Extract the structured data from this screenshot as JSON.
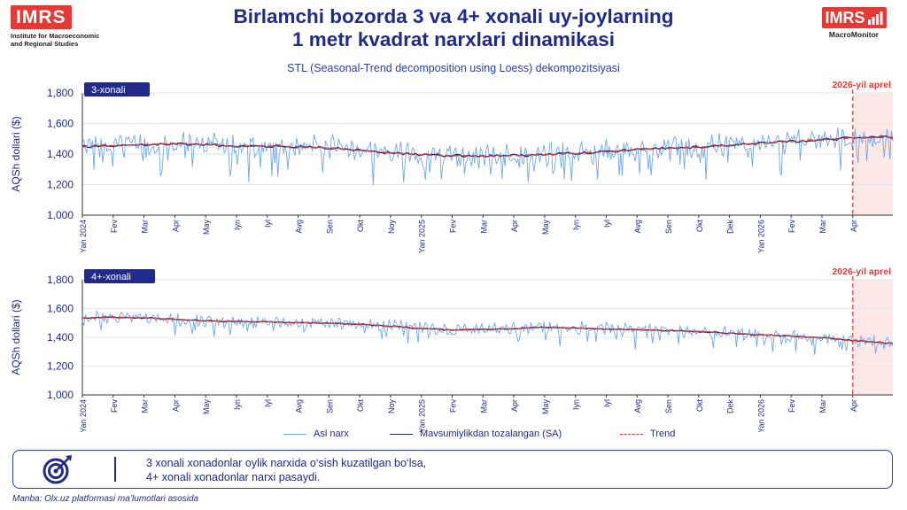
{
  "header": {
    "logo_left_text": "IMRS",
    "logo_left_sub_1": "Institute for Macroeconomic",
    "logo_left_sub_2": "and Regional Studies",
    "logo_right_text": "IMRS",
    "logo_right_sub": "MacroMonitor",
    "title_line1": "Birlamchi bozorda 3 va 4+ xonali uy-joylarning",
    "title_line2": "1 metr kvadrat narxlari dinamikasi",
    "subtitle": "STL (Seasonal-Trend decomposition using Loess) dekompozitsiyasi"
  },
  "colors": {
    "raw": "#6fa8ea",
    "sa": "#1f2a6a",
    "trend": "#e53935",
    "shade": "#fde8e8",
    "accent": "#1f2a8a"
  },
  "chart_data": [
    {
      "type": "line",
      "panel_label": "3-xonali",
      "ylabel": "AQSh dollari ($)",
      "ylim": [
        1000,
        1800
      ],
      "yticks": [
        1000,
        1200,
        1400,
        1600,
        1800
      ],
      "ytick_labels": [
        "1,000",
        "1,200",
        "1,400",
        "1,600",
        "1,800"
      ],
      "x_ticks": [
        "Yan 2024",
        "Fev",
        "Mar",
        "Apr",
        "May",
        "Iyn",
        "Iyl",
        "Avg",
        "Sen",
        "Okt",
        "Noy",
        "Yan 2025",
        "Fev",
        "Mar",
        "Apr",
        "May",
        "Iyn",
        "Iyl",
        "Avg",
        "Sen",
        "Okt",
        "Dek",
        "Yan 2026",
        "Fev",
        "Mar",
        "Apr"
      ],
      "annotation": "2026-yil aprel",
      "trend_knots": [
        [
          0,
          1448
        ],
        [
          1,
          1455
        ],
        [
          2,
          1462
        ],
        [
          3,
          1468
        ],
        [
          4,
          1462
        ],
        [
          5,
          1450
        ],
        [
          6,
          1452
        ],
        [
          7,
          1448
        ],
        [
          8,
          1440
        ],
        [
          9,
          1425
        ],
        [
          10,
          1408
        ],
        [
          11,
          1395
        ],
        [
          12,
          1390
        ],
        [
          13,
          1388
        ],
        [
          14,
          1390
        ],
        [
          15,
          1395
        ],
        [
          16,
          1405
        ],
        [
          17,
          1415
        ],
        [
          18,
          1428
        ],
        [
          19,
          1438
        ],
        [
          20,
          1445
        ],
        [
          21,
          1458
        ],
        [
          22,
          1470
        ],
        [
          23,
          1483
        ],
        [
          24,
          1495
        ],
        [
          25,
          1505
        ],
        [
          26.3,
          1510
        ]
      ],
      "raw_amplitude": 75,
      "raw_seed": 3
    },
    {
      "type": "line",
      "panel_label": "4+-xonali",
      "ylabel": "AQSh dollari ($)",
      "ylim": [
        1000,
        1800
      ],
      "yticks": [
        1000,
        1200,
        1400,
        1600,
        1800
      ],
      "ytick_labels": [
        "1,000",
        "1,200",
        "1,400",
        "1,600",
        "1,800"
      ],
      "x_ticks": [
        "Yan 2024",
        "Fev",
        "Mar",
        "Apr",
        "May",
        "Iyn",
        "Iyl",
        "Avg",
        "Sen",
        "Okt",
        "Noy",
        "Yan 2025",
        "Fev",
        "Mar",
        "Apr",
        "May",
        "Iyn",
        "Iyl",
        "Avg",
        "Sen",
        "Okt",
        "Dek",
        "Yan 2026",
        "Fev",
        "Mar",
        "Apr"
      ],
      "annotation": "2026-yil aprel",
      "trend_knots": [
        [
          0,
          1535
        ],
        [
          1,
          1540
        ],
        [
          2,
          1535
        ],
        [
          3,
          1525
        ],
        [
          4,
          1515
        ],
        [
          5,
          1510
        ],
        [
          6,
          1508
        ],
        [
          7,
          1502
        ],
        [
          8,
          1498
        ],
        [
          9,
          1490
        ],
        [
          10,
          1478
        ],
        [
          11,
          1462
        ],
        [
          12,
          1452
        ],
        [
          13,
          1455
        ],
        [
          14,
          1460
        ],
        [
          15,
          1470
        ],
        [
          16,
          1465
        ],
        [
          17,
          1458
        ],
        [
          18,
          1452
        ],
        [
          19,
          1448
        ],
        [
          20,
          1440
        ],
        [
          21,
          1430
        ],
        [
          22,
          1418
        ],
        [
          23,
          1408
        ],
        [
          24,
          1398
        ],
        [
          25,
          1378
        ],
        [
          26.3,
          1360
        ]
      ],
      "raw_amplitude": 42,
      "raw_seed": 11
    }
  ],
  "legend": {
    "raw": "Asl narx",
    "sa": "Mavsumiylikdan tozalangan (SA)",
    "trend": "Trend"
  },
  "note": {
    "line1": "3 xonali xonadonlar oylik narxida o‘sish kuzatilgan bo‘lsa,",
    "line2": "4+ xonali xonadonlar narxi pasaydi."
  },
  "source": "Manba: Olx.uz platformasi ma’lumotlari asosida"
}
